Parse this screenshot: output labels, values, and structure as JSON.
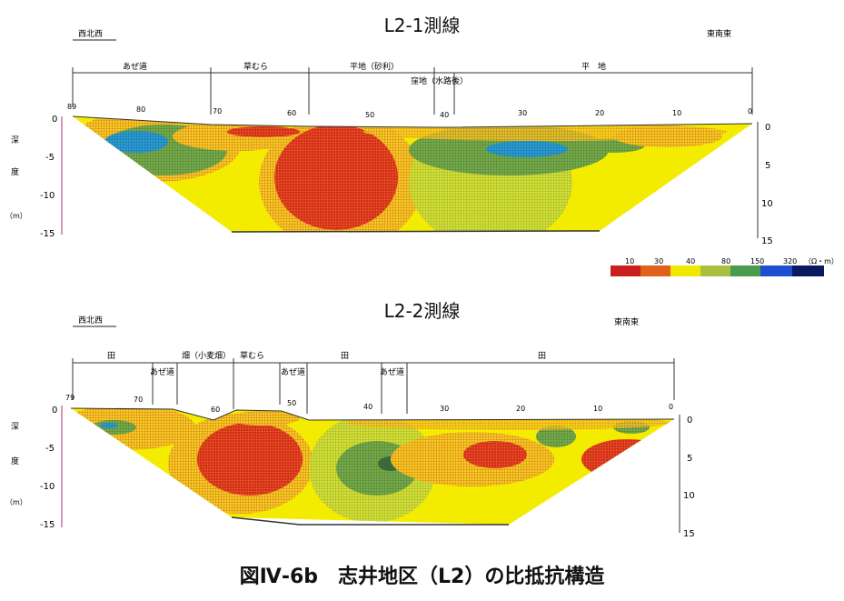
{
  "profiles": [
    {
      "title": "L2-1測線",
      "dir_left": "西北西",
      "dir_right": "東南東",
      "segments": [
        "あぜ道",
        "草むら",
        "平地（砂利）",
        "平　地"
      ],
      "segment_sub": "窪地（水路後）",
      "top_ticks": [
        "89",
        "80",
        "70",
        "60",
        "50",
        "40",
        "30",
        "20",
        "10",
        "0"
      ],
      "depth_ticks_left": [
        "0",
        "-5",
        "-10",
        "-15"
      ],
      "depth_ticks_right": [
        "0",
        "5",
        "10",
        "15"
      ]
    },
    {
      "title": "L2-2測線",
      "dir_left": "西北西",
      "dir_right": "東南東",
      "segments": [
        "田",
        "畑（小麦畑）",
        "草むら",
        "田",
        "田"
      ],
      "paths": [
        "あぜ道",
        "あぜ道",
        "あぜ道"
      ],
      "top_ticks": [
        "79",
        "70",
        "60",
        "50",
        "40",
        "30",
        "20",
        "10",
        "0"
      ],
      "depth_ticks_left": [
        "0",
        "-5",
        "-10",
        "-15"
      ],
      "depth_ticks_right": [
        "0",
        "5",
        "10",
        "15"
      ]
    }
  ],
  "depth_label": {
    "c1": "深",
    "c2": "度",
    "c3": "（m）"
  },
  "legend": {
    "ticks": [
      "10",
      "30",
      "40",
      "80",
      "150",
      "320"
    ],
    "unit": "（Ω・m）",
    "colors": [
      "#c8201e",
      "#e0601c",
      "#f0e800",
      "#a8c040",
      "#4a9a50",
      "#1e4fd0",
      "#0a1a60"
    ]
  },
  "caption": "図Ⅳ-6b　志井地区（L2）の比抵抗構造"
}
